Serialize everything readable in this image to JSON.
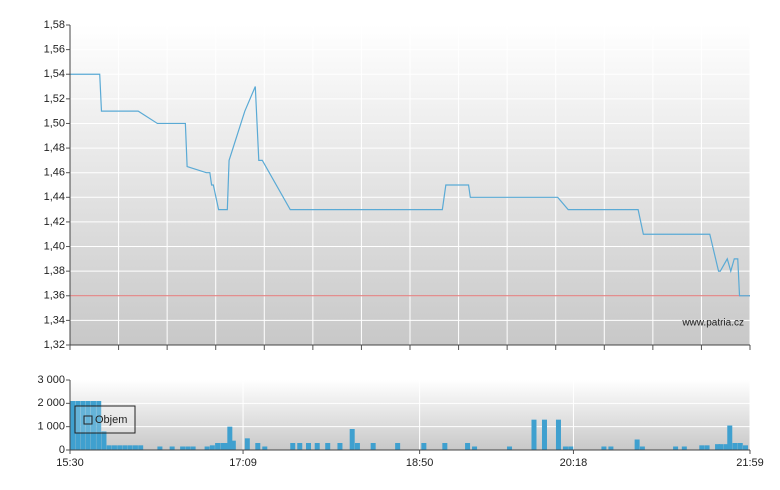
{
  "chart_data": [
    {
      "type": "line",
      "x": [
        0,
        17,
        18,
        39,
        50,
        66,
        67,
        78,
        80,
        81,
        82,
        85,
        90,
        91,
        100,
        106,
        108,
        110,
        126,
        213,
        215,
        228,
        229,
        279,
        285,
        325,
        328,
        366,
        371,
        372,
        376,
        378,
        380,
        382,
        383,
        389
      ],
      "values": [
        1.54,
        1.54,
        1.51,
        1.51,
        1.5,
        1.5,
        1.465,
        1.46,
        1.46,
        1.45,
        1.45,
        1.43,
        1.43,
        1.47,
        1.51,
        1.53,
        1.47,
        1.47,
        1.43,
        1.43,
        1.45,
        1.45,
        1.44,
        1.44,
        1.43,
        1.43,
        1.41,
        1.41,
        1.38,
        1.38,
        1.39,
        1.38,
        1.39,
        1.39,
        1.36,
        1.36
      ],
      "color": "#5aaad5",
      "reference_line": {
        "value": 1.36,
        "color": "#e07070"
      },
      "annotation": "www.patria.cz",
      "xlim": [
        0,
        389
      ],
      "ylim": [
        1.32,
        1.58
      ],
      "yticks": [
        {
          "value": 1.32,
          "label": "1,32"
        },
        {
          "value": 1.34,
          "label": "1,34"
        },
        {
          "value": 1.36,
          "label": "1,36"
        },
        {
          "value": 1.38,
          "label": "1,38"
        },
        {
          "value": 1.4,
          "label": "1,40"
        },
        {
          "value": 1.42,
          "label": "1,42"
        },
        {
          "value": 1.44,
          "label": "1,44"
        },
        {
          "value": 1.46,
          "label": "1,46"
        },
        {
          "value": 1.48,
          "label": "1,48"
        },
        {
          "value": 1.5,
          "label": "1,50"
        },
        {
          "value": 1.52,
          "label": "1,52"
        },
        {
          "value": 1.54,
          "label": "1,54"
        },
        {
          "value": 1.56,
          "label": "1,56"
        },
        {
          "value": 1.58,
          "label": "1,58"
        }
      ],
      "grid": true
    },
    {
      "type": "bar",
      "series": [
        {
          "name": "Objem",
          "color": "#3fa0cf",
          "x": [
            0,
            3,
            6,
            9,
            12,
            15,
            18,
            21,
            24,
            27,
            30,
            33,
            36,
            39,
            50,
            57,
            63,
            66,
            69,
            77,
            80,
            83,
            86,
            88,
            90,
            92,
            100,
            106,
            110,
            126,
            130,
            135,
            140,
            146,
            153,
            160,
            163,
            172,
            186,
            201,
            213,
            226,
            230,
            250,
            264,
            270,
            278,
            282,
            285,
            304,
            308,
            323,
            326,
            345,
            350,
            360,
            363,
            369,
            371,
            374,
            376,
            379,
            382,
            385
          ],
          "values": [
            2100,
            2100,
            2100,
            2100,
            2100,
            2100,
            800,
            200,
            200,
            200,
            200,
            200,
            200,
            200,
            150,
            150,
            150,
            150,
            150,
            150,
            200,
            300,
            300,
            300,
            1000,
            400,
            500,
            300,
            150,
            300,
            300,
            300,
            300,
            300,
            300,
            900,
            300,
            300,
            300,
            300,
            300,
            300,
            150,
            150,
            1300,
            1300,
            1300,
            150,
            150,
            150,
            150,
            450,
            150,
            150,
            150,
            200,
            200,
            250,
            250,
            250,
            1050,
            300,
            300,
            200
          ]
        }
      ],
      "xlim": [
        0,
        389
      ],
      "ylim": [
        0,
        3000
      ],
      "yticks": [
        0,
        {
          "value": 1000,
          "label": "1 000"
        },
        {
          "value": 2000,
          "label": "2 000"
        },
        {
          "value": 3000,
          "label": "3 000"
        }
      ],
      "xticks": [
        {
          "value": 0,
          "label": "15:30"
        },
        {
          "value": 99,
          "label": "17:09"
        },
        {
          "value": 200,
          "label": "18:50"
        },
        {
          "value": 288,
          "label": "20:18"
        },
        {
          "value": 389,
          "label": "21:59"
        }
      ],
      "grid": true
    }
  ]
}
